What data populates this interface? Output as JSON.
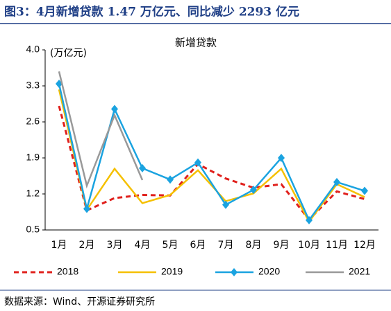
{
  "figure_title": "图3：4月新增贷款 1.47 万亿元、同比减少 2293 亿元",
  "source": "数据来源：Wind、开源证券研究所",
  "chart_data": {
    "type": "line",
    "title": "新增贷款",
    "y_label": "(万亿元)",
    "categories": [
      "1月",
      "2月",
      "3月",
      "4月",
      "5月",
      "6月",
      "7月",
      "8月",
      "9月",
      "10月",
      "11月",
      "12月"
    ],
    "ylim": [
      0.5,
      4.0
    ],
    "yticks": [
      {
        "value": 0.5,
        "label": "0.5"
      },
      {
        "value": 1.2,
        "label": "1.2"
      },
      {
        "value": 1.9,
        "label": "1.9"
      },
      {
        "value": 2.6,
        "label": "2.6"
      },
      {
        "value": 3.3,
        "label": "3.3"
      },
      {
        "value": 4.0,
        "label": "4.0"
      }
    ],
    "legend": "bottom",
    "series": [
      {
        "name": "2018",
        "color": "#e0201c",
        "style": "dashed",
        "values": [
          2.91,
          0.88,
          1.12,
          1.18,
          1.17,
          1.78,
          1.5,
          1.32,
          1.39,
          0.7,
          1.25,
          1.1
        ]
      },
      {
        "name": "2019",
        "color": "#f5c000",
        "style": "solid",
        "values": [
          3.23,
          0.89,
          1.69,
          1.02,
          1.18,
          1.66,
          1.06,
          1.21,
          1.69,
          0.66,
          1.39,
          1.14
        ]
      },
      {
        "name": "2020",
        "color": "#1aa3e0",
        "style": "solid",
        "marker": "diamond",
        "values": [
          3.34,
          0.91,
          2.85,
          1.7,
          1.48,
          1.81,
          0.99,
          1.28,
          1.9,
          0.69,
          1.43,
          1.26
        ]
      },
      {
        "name": "2021",
        "color": "#999999",
        "style": "solid",
        "values": [
          3.58,
          1.36,
          2.73,
          1.47,
          null,
          null,
          null,
          null,
          null,
          null,
          null,
          null
        ]
      }
    ]
  }
}
